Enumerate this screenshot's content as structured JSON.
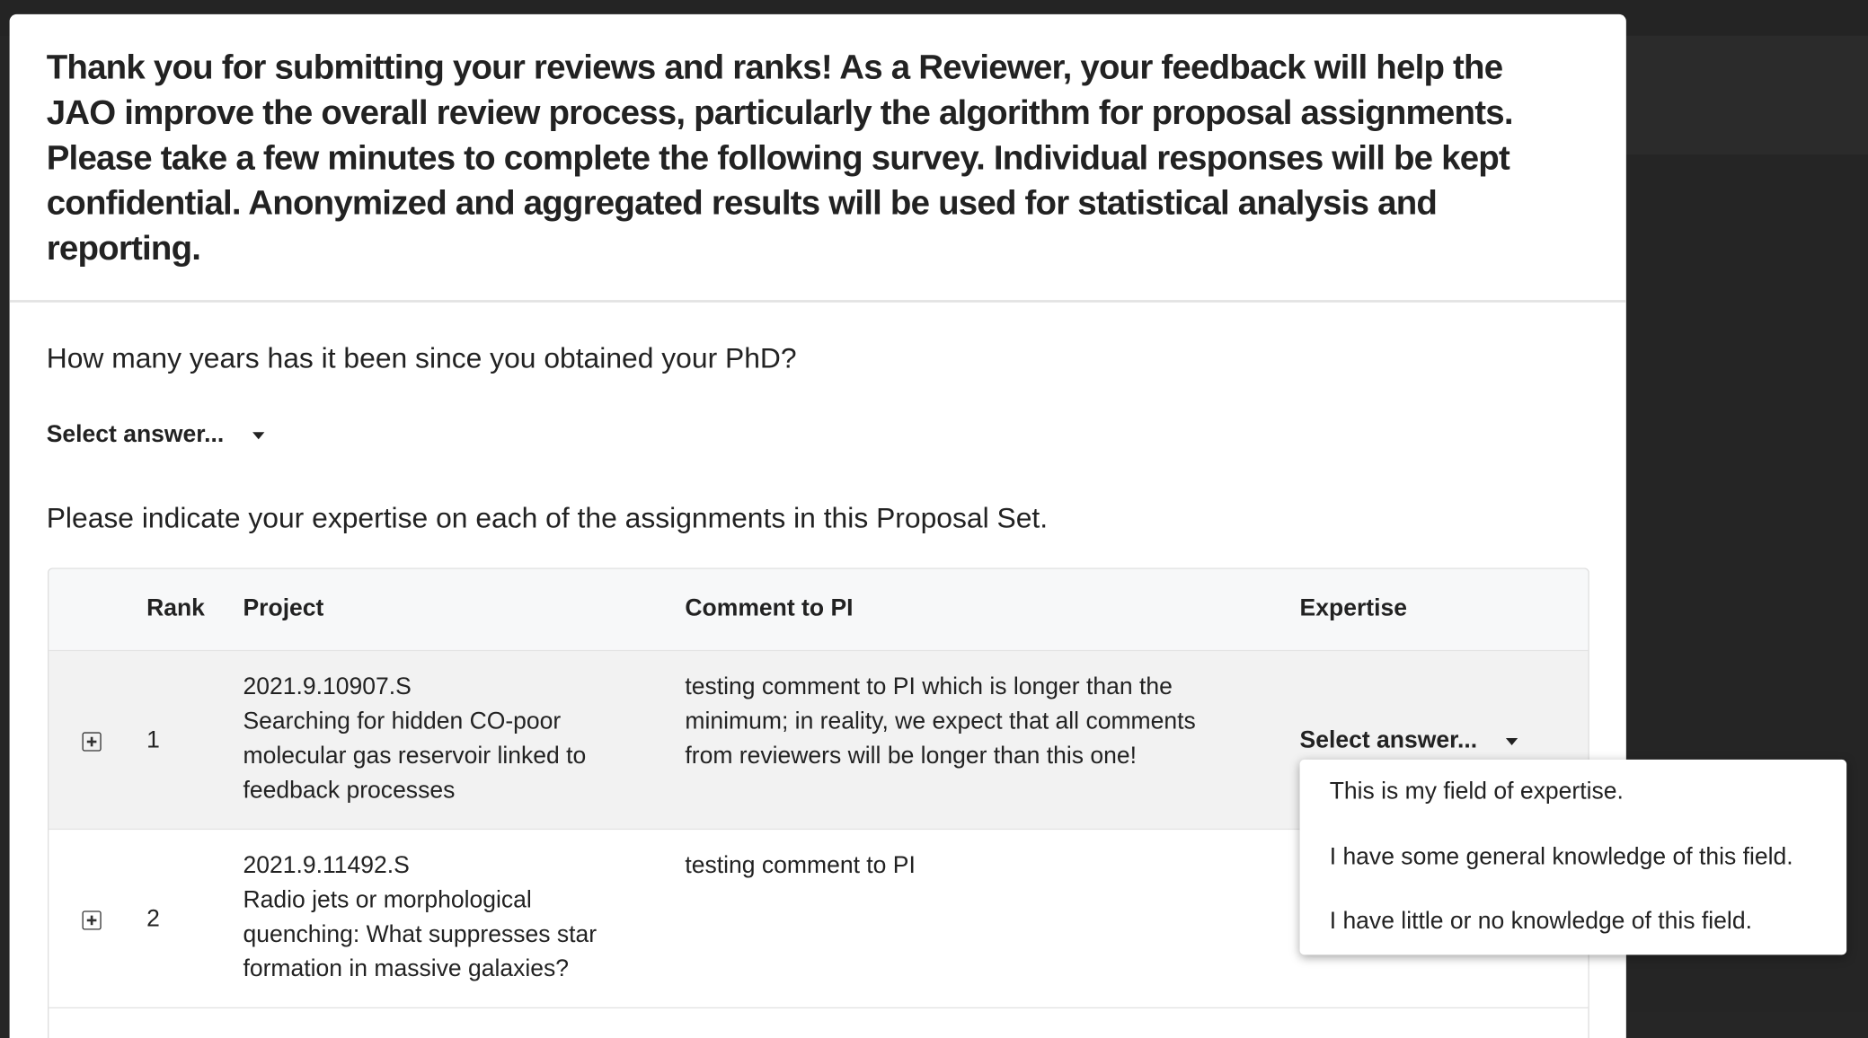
{
  "intro": "Thank you for submitting your reviews and ranks! As a Reviewer, your feedback will help the JAO improve the overall review process, particularly the algorithm for proposal assignments. Please take a few minutes to complete the following survey. Individual responses will be kept confidential. Anonymized and aggregated results will be used for statistical analysis and reporting.",
  "question1": {
    "label": "How many years has it been since you obtained your PhD?",
    "select": "Select answer..."
  },
  "question2": {
    "label": "Please indicate your expertise on each of the assignments in this Proposal Set."
  },
  "table": {
    "headers": {
      "rank": "Rank",
      "project": "Project",
      "comment": "Comment to PI",
      "expertise": "Expertise"
    },
    "rows": [
      {
        "rank": "1",
        "code": "2021.9.10907.S",
        "title": "Searching for hidden CO-poor molecular gas reservoir linked to feedback processes",
        "comment": "testing comment to PI which is longer than the minimum; in reality, we expect that all comments from reviewers will be longer than this one!",
        "expertise": "Select answer..."
      },
      {
        "rank": "2",
        "code": "2021.9.11492.S",
        "title": "Radio jets or morphological quenching: What suppresses star formation in massive galaxies?",
        "comment": "testing comment to PI",
        "expertise": ""
      }
    ]
  },
  "dropdown": {
    "options": [
      "This is my field of expertise.",
      "I have some general knowledge of this field.",
      "I have little or no knowledge of this field."
    ]
  }
}
